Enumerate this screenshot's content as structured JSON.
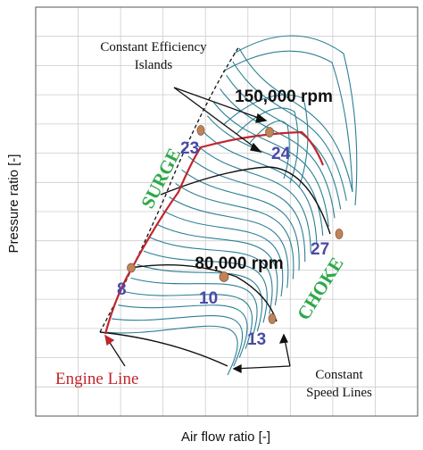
{
  "axes": {
    "xlabel": "Air flow ratio [-]",
    "ylabel": "Pressure ratio [-]"
  },
  "annotations": {
    "efficiency_islands_line1": "Constant Efficiency",
    "efficiency_islands_line2": "Islands",
    "speed_150k": "150,000 rpm",
    "speed_80k": "80,000 rpm",
    "surge": "SURGE",
    "choke": "CHOKE",
    "engine_line": "Engine Line",
    "speed_lines_line1": "Constant",
    "speed_lines_line2": "Speed Lines"
  },
  "operating_points": [
    {
      "label": "23"
    },
    {
      "label": "24"
    },
    {
      "label": "27"
    },
    {
      "label": "8"
    },
    {
      "label": "10"
    },
    {
      "label": "13"
    }
  ],
  "colors": {
    "efficiency_contours": "#2b7f94",
    "engine_line": "#c0272d",
    "surge_text": "#2ea84a",
    "choke_text": "#2ea84a",
    "point_labels": "#4a4aa8",
    "operating_point_marker": "#c0835a",
    "grid": "#cccccc",
    "speed_lines": "#000000"
  }
}
